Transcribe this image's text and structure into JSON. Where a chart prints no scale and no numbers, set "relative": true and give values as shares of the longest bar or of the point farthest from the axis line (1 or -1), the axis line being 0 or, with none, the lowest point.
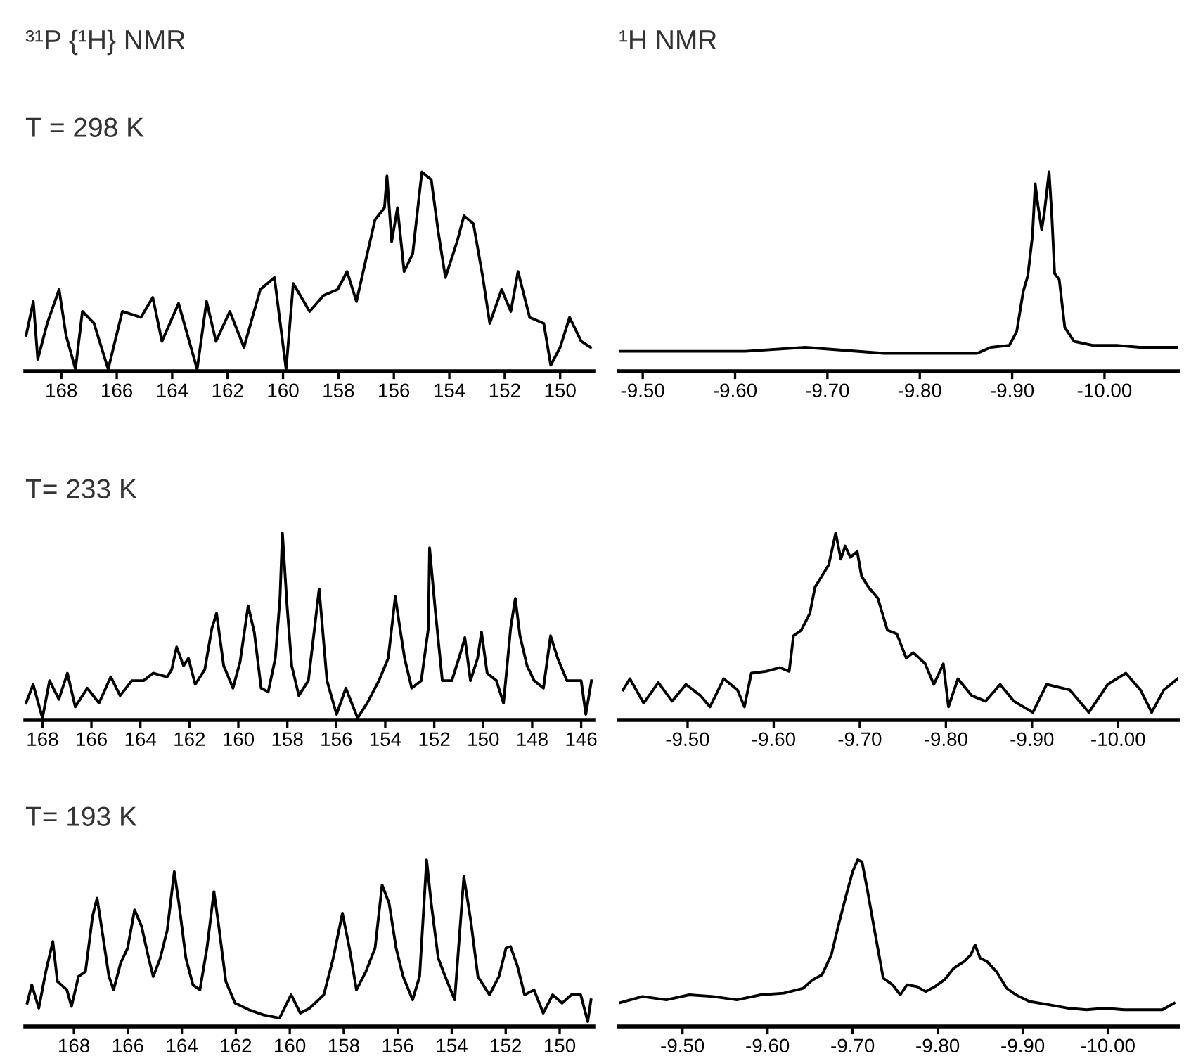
{
  "chart_data": [
    {
      "type": "line",
      "title": "³¹P {¹H} NMR",
      "subtitle": "T = 298 K",
      "relative": true,
      "tick_labels": "x",
      "xlim": [
        169.3,
        148.8
      ],
      "xticks": [
        168,
        166,
        164,
        162,
        160,
        158,
        156,
        154,
        152,
        150
      ],
      "series": [
        {
          "color": "#000000",
          "x": [
            169.27,
            169.01,
            168.85,
            168.51,
            168.08,
            167.83,
            167.49,
            167.24,
            166.82,
            166.31,
            165.8,
            165.13,
            164.7,
            164.37,
            163.77,
            163.1,
            162.76,
            162.42,
            161.92,
            161.41,
            160.82,
            160.31,
            159.89,
            159.63,
            159.04,
            158.54,
            158.03,
            157.69,
            157.35,
            157.01,
            156.68,
            156.34,
            156.25,
            156.08,
            155.87,
            155.63,
            155.32,
            155.16,
            154.99,
            154.65,
            154.4,
            154.14,
            153.72,
            153.47,
            153.13,
            152.79,
            152.54,
            152.11,
            151.78,
            151.52,
            151.1,
            150.59,
            150.34,
            150.0,
            149.66,
            149.24,
            148.9
          ],
          "values": [
            0.18,
            0.35,
            0.06,
            0.24,
            0.41,
            0.18,
            0.01,
            0.3,
            0.24,
            0.01,
            0.3,
            0.27,
            0.37,
            0.15,
            0.34,
            0.01,
            0.35,
            0.15,
            0.3,
            0.12,
            0.41,
            0.47,
            0.01,
            0.44,
            0.3,
            0.38,
            0.41,
            0.5,
            0.35,
            0.56,
            0.76,
            0.82,
            0.98,
            0.65,
            0.82,
            0.5,
            0.59,
            0.79,
            1.0,
            0.96,
            0.7,
            0.47,
            0.65,
            0.78,
            0.74,
            0.47,
            0.24,
            0.41,
            0.3,
            0.5,
            0.27,
            0.24,
            0.03,
            0.12,
            0.27,
            0.15,
            0.12
          ]
        }
      ]
    },
    {
      "type": "line",
      "title": "¹H NMR",
      "relative": true,
      "tick_labels": "x",
      "xlim": [
        -9.474,
        -10.08
      ],
      "xticks": [
        {
          "value": -9.5,
          "label": "-9.50"
        },
        {
          "value": -9.6,
          "label": "-9.60"
        },
        {
          "value": -9.7,
          "label": "-9.70"
        },
        {
          "value": -9.8,
          "label": "-9.80"
        },
        {
          "value": -9.9,
          "label": "-9.90"
        },
        {
          "value": -10.0,
          "label": "-10.00"
        }
      ],
      "series": [
        {
          "color": "#000000",
          "x": [
            -9.475,
            -9.535,
            -9.611,
            -9.676,
            -9.761,
            -9.862,
            -9.877,
            -9.897,
            -9.905,
            -9.912,
            -9.917,
            -9.922,
            -9.925,
            -9.928,
            -9.932,
            -9.935,
            -9.94,
            -9.943,
            -9.946,
            -9.951,
            -9.957,
            -9.967,
            -9.987,
            -10.013,
            -10.038,
            -10.08
          ],
          "values": [
            0.1,
            0.1,
            0.1,
            0.12,
            0.09,
            0.09,
            0.12,
            0.13,
            0.2,
            0.4,
            0.48,
            0.68,
            0.94,
            0.83,
            0.71,
            0.8,
            1.0,
            0.78,
            0.49,
            0.46,
            0.22,
            0.15,
            0.13,
            0.13,
            0.12,
            0.12
          ]
        }
      ]
    },
    {
      "type": "line",
      "subtitle": "T= 233 K",
      "relative": true,
      "tick_labels": "x",
      "xlim": [
        168.7,
        145.5
      ],
      "xticks": [
        168,
        166,
        164,
        162,
        160,
        158,
        156,
        154,
        152,
        150,
        148,
        146
      ],
      "series": [
        {
          "color": "#000000",
          "x": [
            168.67,
            168.38,
            168.0,
            167.71,
            167.33,
            166.98,
            166.66,
            166.17,
            165.69,
            165.21,
            164.83,
            164.35,
            163.87,
            163.48,
            162.91,
            162.72,
            162.52,
            162.24,
            162.04,
            161.76,
            161.37,
            161.08,
            160.89,
            160.6,
            160.22,
            159.93,
            159.6,
            159.35,
            159.07,
            158.78,
            158.49,
            158.3,
            158.2,
            158.01,
            157.82,
            157.53,
            157.14,
            156.7,
            156.38,
            155.99,
            155.61,
            155.13,
            154.74,
            154.26,
            153.88,
            153.59,
            153.4,
            153.21,
            152.92,
            152.53,
            152.24,
            152.19,
            151.96,
            151.67,
            151.28,
            150.9,
            150.75,
            150.52,
            150.23,
            150.07,
            149.84,
            149.46,
            149.17,
            148.88,
            148.69,
            148.5,
            148.21,
            147.92,
            147.54,
            147.25,
            146.96,
            146.58,
            146.0,
            145.81,
            145.58
          ],
          "values": [
            0.09,
            0.19,
            0.01,
            0.21,
            0.11,
            0.25,
            0.07,
            0.17,
            0.09,
            0.23,
            0.13,
            0.21,
            0.21,
            0.25,
            0.23,
            0.27,
            0.39,
            0.29,
            0.33,
            0.19,
            0.27,
            0.49,
            0.57,
            0.29,
            0.17,
            0.31,
            0.61,
            0.47,
            0.17,
            0.15,
            0.33,
            0.65,
            1.0,
            0.61,
            0.29,
            0.13,
            0.21,
            0.7,
            0.21,
            0.03,
            0.17,
            0.01,
            0.09,
            0.21,
            0.33,
            0.66,
            0.49,
            0.33,
            0.17,
            0.21,
            0.49,
            0.92,
            0.59,
            0.21,
            0.21,
            0.37,
            0.44,
            0.21,
            0.33,
            0.47,
            0.25,
            0.21,
            0.09,
            0.49,
            0.65,
            0.45,
            0.29,
            0.21,
            0.17,
            0.45,
            0.33,
            0.21,
            0.21,
            0.03,
            0.21
          ]
        }
      ]
    },
    {
      "type": "line",
      "relative": true,
      "tick_labels": "x",
      "xlim": [
        -9.42,
        -10.07
      ],
      "xticks": [
        {
          "value": -9.5,
          "label": "-9.50"
        },
        {
          "value": -9.6,
          "label": "-9.60"
        },
        {
          "value": -9.7,
          "label": "-9.70"
        },
        {
          "value": -9.8,
          "label": "-9.80"
        },
        {
          "value": -9.9,
          "label": "-9.90"
        },
        {
          "value": -10.0,
          "label": "-10.00"
        }
      ],
      "series": [
        {
          "color": "#000000",
          "x": [
            -9.425,
            -9.433,
            -9.449,
            -9.466,
            -9.482,
            -9.498,
            -9.515,
            -9.526,
            -9.542,
            -9.558,
            -9.566,
            -9.574,
            -9.591,
            -9.607,
            -9.618,
            -9.623,
            -9.632,
            -9.642,
            -9.648,
            -9.656,
            -9.664,
            -9.672,
            -9.678,
            -9.683,
            -9.689,
            -9.697,
            -9.702,
            -9.71,
            -9.721,
            -9.732,
            -9.743,
            -9.754,
            -9.762,
            -9.776,
            -9.786,
            -9.797,
            -9.803,
            -9.814,
            -9.83,
            -9.846,
            -9.863,
            -9.879,
            -9.901,
            -9.917,
            -9.944,
            -9.966,
            -9.988,
            -10.009,
            -10.026,
            -10.039,
            -10.053,
            -10.069
          ],
          "values": [
            0.16,
            0.22,
            0.09,
            0.2,
            0.1,
            0.19,
            0.13,
            0.07,
            0.22,
            0.16,
            0.07,
            0.25,
            0.26,
            0.28,
            0.26,
            0.45,
            0.48,
            0.57,
            0.71,
            0.77,
            0.83,
            1.0,
            0.86,
            0.93,
            0.87,
            0.9,
            0.77,
            0.71,
            0.65,
            0.48,
            0.46,
            0.33,
            0.36,
            0.3,
            0.19,
            0.3,
            0.07,
            0.22,
            0.13,
            0.1,
            0.19,
            0.1,
            0.04,
            0.19,
            0.16,
            0.04,
            0.19,
            0.25,
            0.16,
            0.04,
            0.16,
            0.22
          ]
        }
      ]
    },
    {
      "type": "line",
      "subtitle": "T= 193 K",
      "relative": true,
      "tick_labels": "x",
      "xlim": [
        169.8,
        148.75
      ],
      "xticks": [
        168,
        166,
        164,
        162,
        160,
        158,
        156,
        154,
        152,
        150
      ],
      "series": [
        {
          "color": "#000000",
          "x": [
            169.73,
            169.56,
            169.3,
            169.04,
            168.78,
            168.61,
            168.26,
            168.09,
            167.83,
            167.57,
            167.31,
            167.14,
            166.96,
            166.7,
            166.53,
            166.27,
            166.01,
            165.75,
            165.49,
            165.23,
            165.06,
            164.8,
            164.54,
            164.28,
            164.11,
            163.85,
            163.59,
            163.33,
            163.07,
            162.81,
            162.63,
            162.37,
            162.03,
            161.51,
            160.99,
            160.38,
            159.95,
            159.61,
            159.26,
            158.74,
            158.39,
            158.05,
            157.79,
            157.53,
            157.18,
            156.84,
            156.58,
            156.32,
            156.06,
            155.8,
            155.45,
            155.19,
            154.93,
            154.76,
            154.5,
            154.24,
            153.89,
            153.55,
            153.29,
            153.03,
            152.6,
            152.25,
            151.99,
            151.82,
            151.56,
            151.3,
            150.95,
            150.61,
            150.26,
            149.91,
            149.57,
            149.22,
            148.96,
            148.84
          ],
          "values": [
            0.14,
            0.25,
            0.11,
            0.33,
            0.51,
            0.27,
            0.22,
            0.12,
            0.3,
            0.33,
            0.66,
            0.77,
            0.58,
            0.3,
            0.22,
            0.38,
            0.47,
            0.7,
            0.6,
            0.41,
            0.3,
            0.41,
            0.58,
            0.93,
            0.74,
            0.41,
            0.25,
            0.22,
            0.47,
            0.81,
            0.6,
            0.27,
            0.14,
            0.1,
            0.07,
            0.05,
            0.19,
            0.08,
            0.11,
            0.19,
            0.41,
            0.68,
            0.47,
            0.22,
            0.33,
            0.47,
            0.85,
            0.74,
            0.47,
            0.3,
            0.16,
            0.3,
            1.0,
            0.74,
            0.41,
            0.3,
            0.16,
            0.9,
            0.63,
            0.3,
            0.19,
            0.3,
            0.47,
            0.48,
            0.36,
            0.19,
            0.22,
            0.08,
            0.19,
            0.14,
            0.19,
            0.19,
            0.03,
            0.16
          ]
        }
      ]
    },
    {
      "type": "line",
      "relative": true,
      "tick_labels": "x",
      "xlim": [
        -9.425,
        -10.083
      ],
      "xticks": [
        {
          "value": -9.5,
          "label": "-9.50"
        },
        {
          "value": -9.6,
          "label": "-9.60"
        },
        {
          "value": -9.7,
          "label": "-9.70"
        },
        {
          "value": -9.8,
          "label": "-9.80"
        },
        {
          "value": -9.9,
          "label": "-9.90"
        },
        {
          "value": -10.0,
          "label": "-10.00"
        }
      ],
      "series": [
        {
          "color": "#000000",
          "x": [
            -9.425,
            -9.453,
            -9.481,
            -9.508,
            -9.536,
            -9.564,
            -9.592,
            -9.619,
            -9.642,
            -9.653,
            -9.664,
            -9.675,
            -9.683,
            -9.692,
            -9.7,
            -9.706,
            -9.711,
            -9.717,
            -9.725,
            -9.731,
            -9.736,
            -9.747,
            -9.756,
            -9.764,
            -9.775,
            -9.786,
            -9.797,
            -9.808,
            -9.819,
            -9.831,
            -9.839,
            -9.844,
            -9.85,
            -9.858,
            -9.869,
            -9.881,
            -9.892,
            -9.908,
            -9.931,
            -9.953,
            -9.975,
            -9.997,
            -10.019,
            -10.042,
            -10.064,
            -10.078
          ],
          "values": [
            0.14,
            0.18,
            0.16,
            0.19,
            0.18,
            0.16,
            0.19,
            0.2,
            0.23,
            0.28,
            0.31,
            0.43,
            0.6,
            0.78,
            0.93,
            1.0,
            0.99,
            0.83,
            0.6,
            0.43,
            0.29,
            0.25,
            0.19,
            0.25,
            0.24,
            0.21,
            0.24,
            0.28,
            0.35,
            0.39,
            0.43,
            0.49,
            0.41,
            0.39,
            0.33,
            0.23,
            0.19,
            0.15,
            0.13,
            0.11,
            0.1,
            0.11,
            0.1,
            0.1,
            0.1,
            0.14
          ]
        }
      ]
    }
  ]
}
